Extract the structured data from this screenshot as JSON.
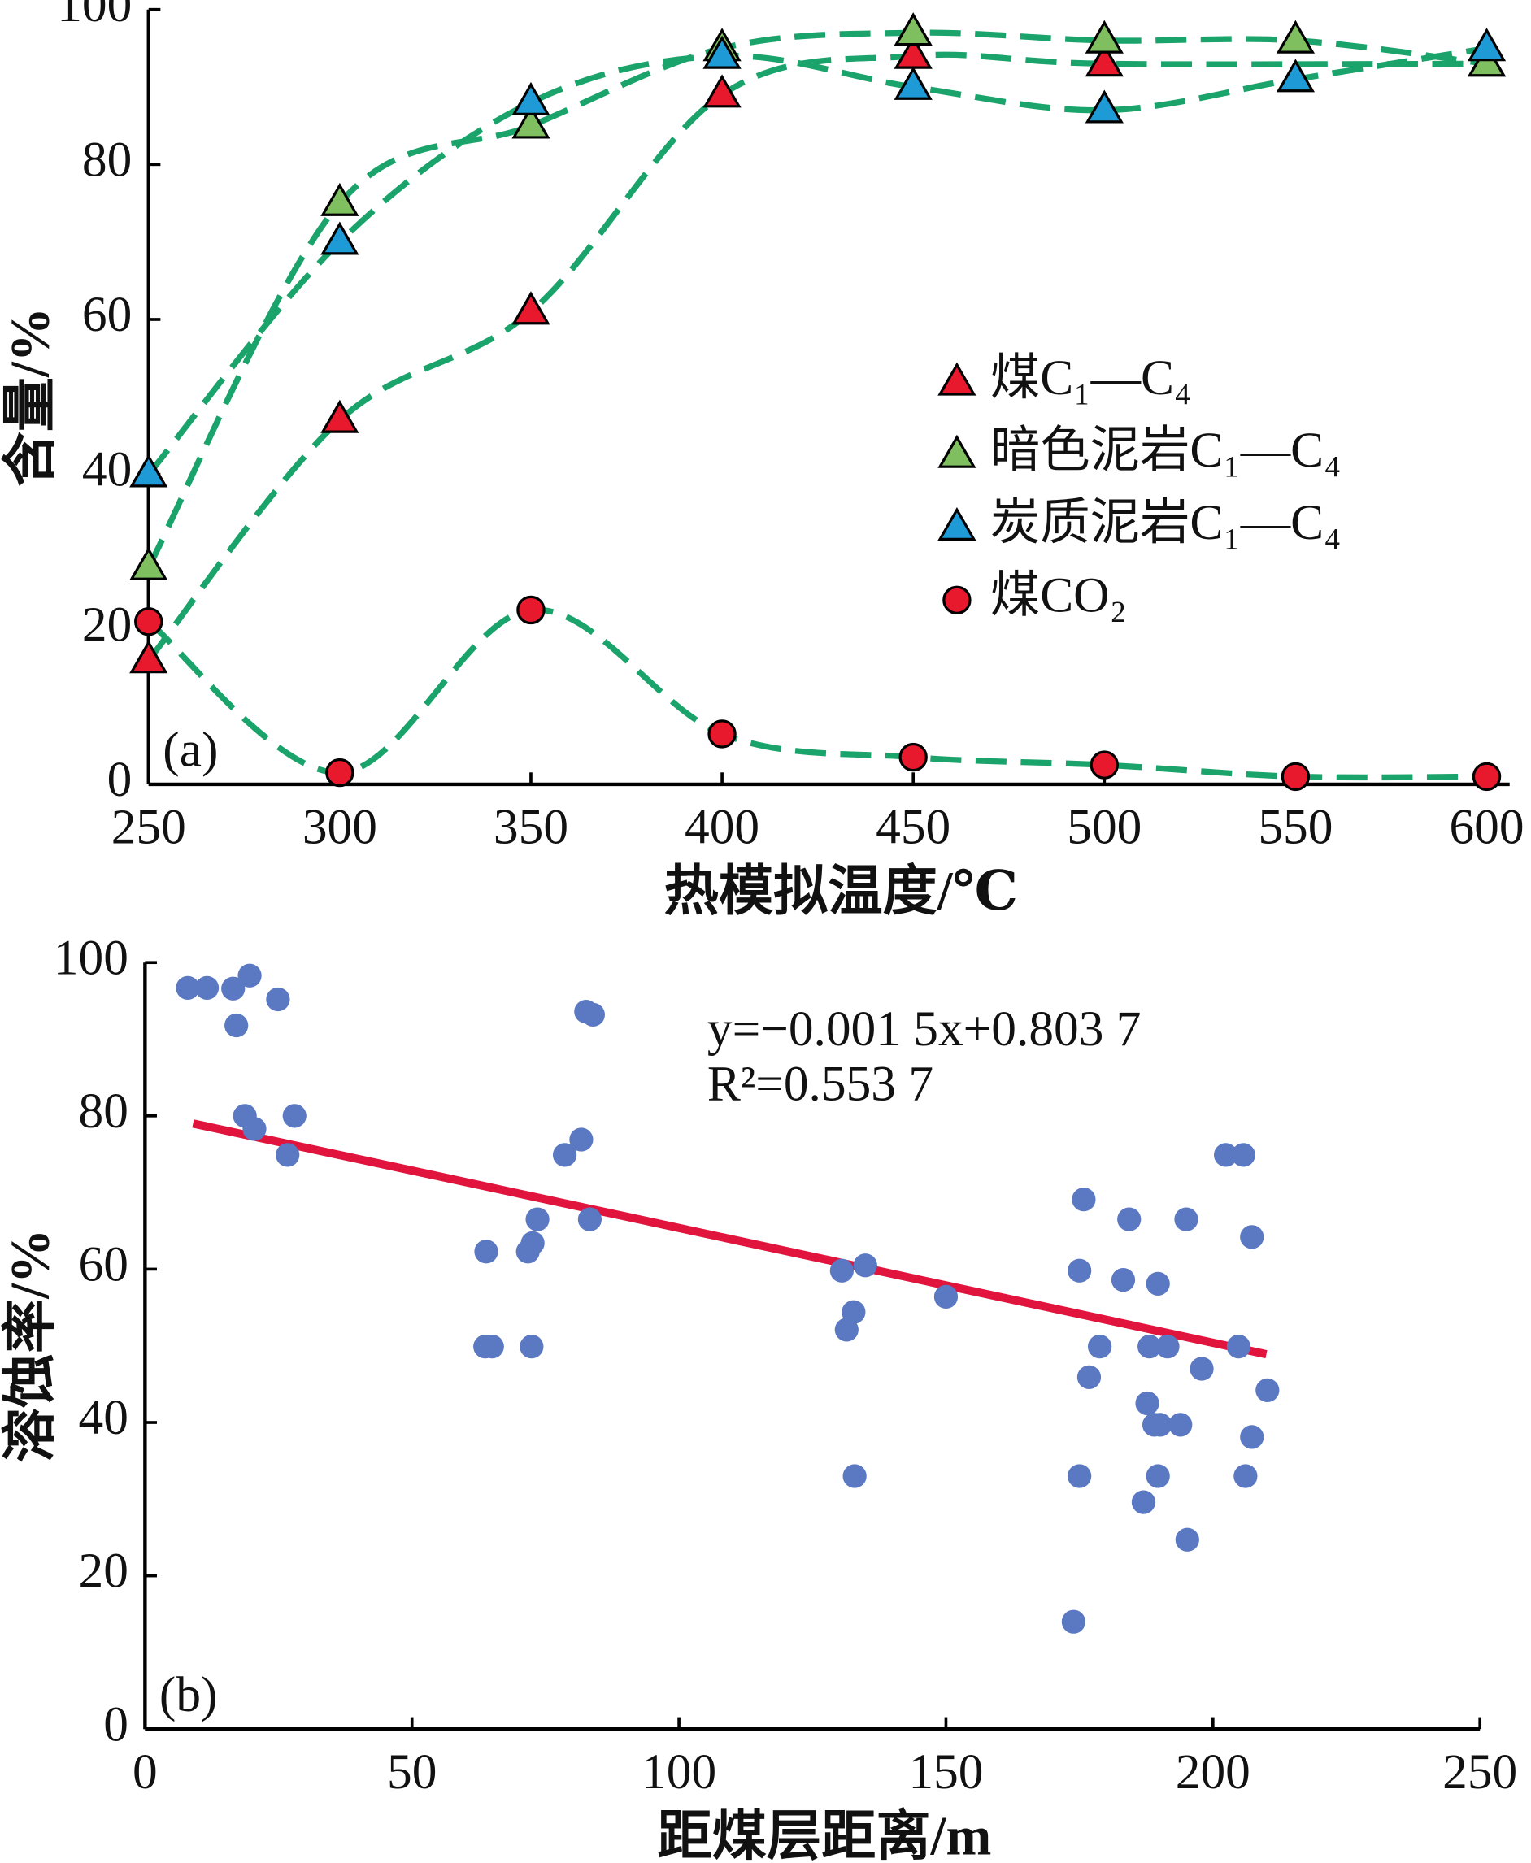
{
  "chart_data": [
    {
      "type": "scatter",
      "label": "(a)",
      "xlabel": "热模拟温度/℃",
      "ylabel": "含量/%",
      "xlim": [
        250,
        606
      ],
      "ylim": [
        0,
        100
      ],
      "xticks": [
        250,
        300,
        350,
        400,
        450,
        500,
        550,
        600
      ],
      "yticks": [
        0,
        20,
        40,
        60,
        80,
        100
      ],
      "curve_color": "#1aa36a",
      "series": [
        {
          "name": "煤C₁—C₄",
          "color": "#e8192c",
          "marker": "triangle",
          "x": [
            250,
            300,
            350,
            400,
            450,
            500,
            600
          ],
          "values": [
            16,
            47,
            61,
            89,
            94,
            93,
            93
          ]
        },
        {
          "name": "暗色泥岩C₁—C₄",
          "color": "#7fbf5f",
          "marker": "triangle",
          "x": [
            250,
            300,
            350,
            400,
            450,
            500,
            550,
            600
          ],
          "values": [
            28,
            75,
            85,
            95,
            97,
            96,
            96,
            93
          ]
        },
        {
          "name": "炭质泥岩C₁—C₄",
          "color": "#1e9ad6",
          "marker": "triangle",
          "x": [
            250,
            300,
            350,
            400,
            450,
            500,
            550,
            600
          ],
          "values": [
            40,
            70,
            88,
            94,
            90,
            87,
            91,
            95
          ]
        },
        {
          "name": "煤CO₂",
          "color": "#e8192c",
          "marker": "circle",
          "x": [
            250,
            300,
            350,
            400,
            450,
            500,
            550,
            600
          ],
          "values": [
            21,
            1.5,
            22.5,
            6.5,
            3.5,
            2.5,
            1,
            1
          ]
        }
      ]
    },
    {
      "type": "scatter",
      "label": "(b)",
      "xlabel": "距煤层距离/m",
      "ylabel": "溶蚀率/%",
      "xlim": [
        0,
        250
      ],
      "ylim": [
        0,
        100
      ],
      "xticks": [
        0,
        50,
        100,
        150,
        200,
        250
      ],
      "yticks": [
        0,
        20,
        40,
        60,
        80,
        100
      ],
      "annotations": [
        "y=−0.001 5x+0.803 7",
        "R²=0.553 7"
      ],
      "series": [
        {
          "color": "#5b78c2",
          "marker": "circle",
          "x": [
            8,
            11.6,
            16.5,
            19.6,
            17.1,
            24.9,
            18.7,
            20.5,
            28,
            26.7,
            63.7,
            65,
            63.9,
            71.7,
            72.6,
            73.5,
            72.4,
            78.6,
            81.7,
            82.6,
            83.9,
            83.3,
            130.5,
            131.4,
            132.7,
            134.9,
            132.9,
            150,
            173.9,
            175,
            175.8,
            175,
            176.8,
            178.8,
            183.2,
            184.3,
            187.7,
            188.1,
            189,
            190.1,
            189.7,
            189.7,
            187,
            191.5,
            193.9,
            195,
            195.2,
            197.9,
            202.4,
            205.7,
            204.8,
            206.1,
            207.3,
            207.3,
            210.2
          ],
          "values": [
            96.7,
            96.7,
            96.6,
            98.3,
            91.8,
            95.2,
            80,
            78.3,
            80,
            74.9,
            49.9,
            49.9,
            62.3,
            62.3,
            63.4,
            66.5,
            49.9,
            74.9,
            76.9,
            93.6,
            93.2,
            66.5,
            59.8,
            52.1,
            54.4,
            60.5,
            33,
            56.4,
            14,
            59.8,
            69.1,
            33,
            45.9,
            49.9,
            58.6,
            66.5,
            42.5,
            49.9,
            39.7,
            39.7,
            58.1,
            33,
            29.6,
            49.9,
            39.7,
            66.5,
            24.7,
            47,
            74.9,
            74.9,
            49.9,
            33,
            38.1,
            64.2,
            44.2
          ]
        }
      ],
      "fit_line": {
        "color": "#e0143c",
        "x": [
          9,
          210
        ],
        "values": [
          79,
          48.9
        ]
      }
    }
  ]
}
